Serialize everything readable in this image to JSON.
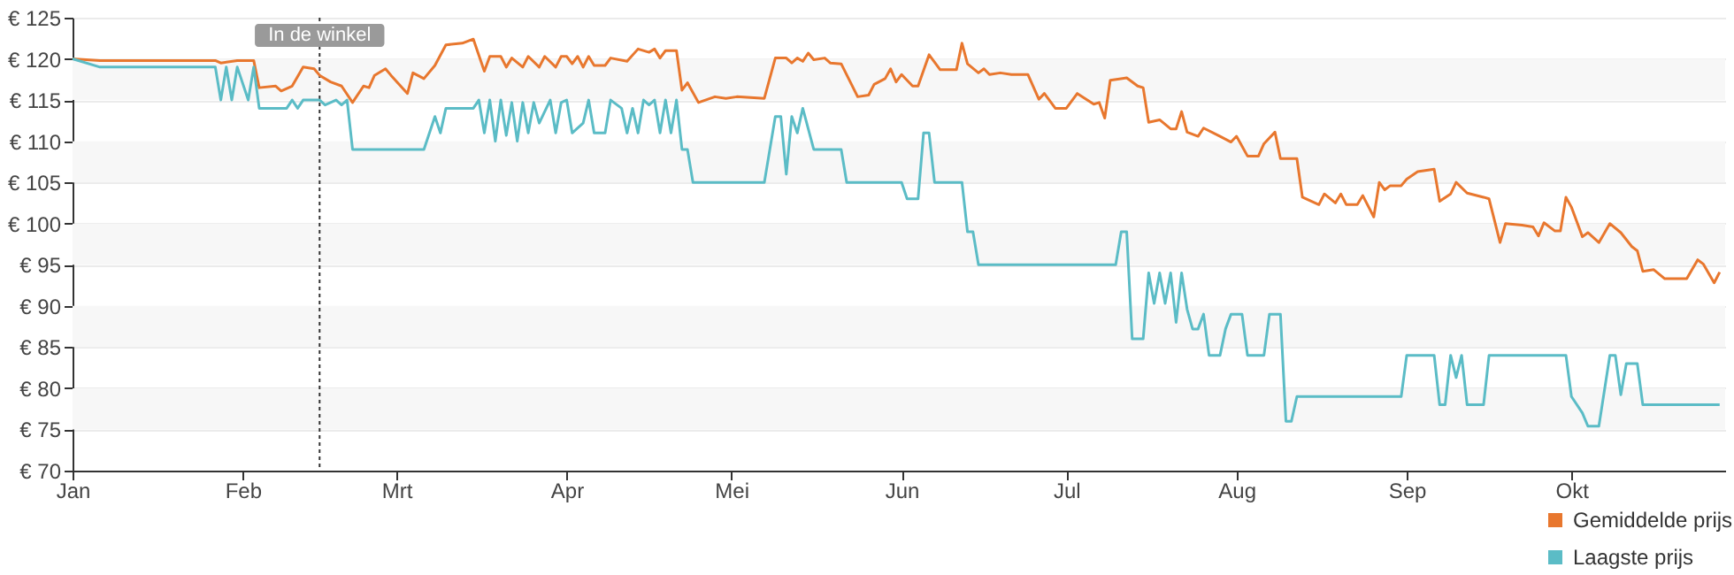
{
  "chart_data": {
    "type": "line",
    "legend": "bottom right",
    "grid": "y",
    "xlim": [
      "--01-01",
      "--10-29"
    ],
    "xticks": [
      {
        "value": "--01-01",
        "label": "Jan"
      },
      {
        "value": "--02-01",
        "label": "Feb"
      },
      {
        "value": "--03-01",
        "label": "Mrt"
      },
      {
        "value": "--04-01",
        "label": "Apr"
      },
      {
        "value": "--05-01",
        "label": "Mei"
      },
      {
        "value": "--06-01",
        "label": "Jun"
      },
      {
        "value": "--07-01",
        "label": "Jul"
      },
      {
        "value": "--08-01",
        "label": "Aug"
      },
      {
        "value": "--09-01",
        "label": "Sep"
      },
      {
        "value": "--10-01",
        "label": "Okt"
      }
    ],
    "ylim": [
      70,
      125
    ],
    "yticks": [
      {
        "value": 70,
        "label": "€ 70"
      },
      {
        "value": 75,
        "label": "€ 75"
      },
      {
        "value": 80,
        "label": "€ 80"
      },
      {
        "value": 85,
        "label": "€ 85"
      },
      {
        "value": 90,
        "label": "€ 90"
      },
      {
        "value": 95,
        "label": "€ 95"
      },
      {
        "value": 100,
        "label": "€ 100"
      },
      {
        "value": 105,
        "label": "€ 105"
      },
      {
        "value": 110,
        "label": "€ 110"
      },
      {
        "value": 115,
        "label": "€ 115"
      },
      {
        "value": 120,
        "label": "€ 120"
      },
      {
        "value": 125,
        "label": "€ 125"
      }
    ],
    "ref_lines": [
      {
        "axis": "x",
        "value": "--02-15",
        "label": "In de winkel",
        "line_style": "dotted",
        "color": "#333333"
      }
    ],
    "series": [
      {
        "name": "Gemiddelde prijs",
        "color": "#e8772e",
        "x": [
          "--01-01",
          "--01-06",
          "--01-20",
          "--01-27",
          "--01-28",
          "--01-31",
          "--02-03",
          "--02-04",
          "--02-07",
          "--02-08",
          "--02-10",
          "--02-12",
          "--02-14",
          "--02-15",
          "--02-17",
          "--02-19",
          "--02-21",
          "--02-23",
          "--02-24",
          "--02-25",
          "--02-27",
          "--02-28",
          "--03-03",
          "--03-04",
          "--03-06",
          "--03-08",
          "--03-10",
          "--03-13",
          "--03-15",
          "--03-17",
          "--03-18",
          "--03-20",
          "--03-21",
          "--03-22",
          "--03-24",
          "--03-25",
          "--03-27",
          "--03-28",
          "--03-30",
          "--03-31",
          "--04-01",
          "--04-02",
          "--04-03",
          "--04-04",
          "--04-05",
          "--04-06",
          "--04-08",
          "--04-09",
          "--04-12",
          "--04-14",
          "--04-16",
          "--04-17",
          "--04-18",
          "--04-19",
          "--04-21",
          "--04-22",
          "--04-23",
          "--04-25",
          "--04-28",
          "--04-30",
          "--05-02",
          "--05-07",
          "--05-09",
          "--05-11",
          "--05-12",
          "--05-13",
          "--05-14",
          "--05-15",
          "--05-16",
          "--05-18",
          "--05-19",
          "--05-21",
          "--05-24",
          "--05-26",
          "--05-27",
          "--05-29",
          "--05-30",
          "--05-31",
          "--06-01",
          "--06-03",
          "--06-04",
          "--06-06",
          "--06-08",
          "--06-11",
          "--06-12",
          "--06-13",
          "--06-15",
          "--06-16",
          "--06-17",
          "--06-19",
          "--06-21",
          "--06-24",
          "--06-26",
          "--06-27",
          "--06-29",
          "--07-01",
          "--07-03",
          "--07-06",
          "--07-07",
          "--07-08",
          "--07-09",
          "--07-12",
          "--07-14",
          "--07-15",
          "--07-16",
          "--07-18",
          "--07-20",
          "--07-21",
          "--07-22",
          "--07-23",
          "--07-25",
          "--07-26",
          "--07-29",
          "--07-31",
          "--08-01",
          "--08-03",
          "--08-05",
          "--08-06",
          "--08-08",
          "--08-09",
          "--08-12",
          "--08-13",
          "--08-16",
          "--08-17",
          "--08-19",
          "--08-20",
          "--08-21",
          "--08-23",
          "--08-24",
          "--08-26",
          "--08-27",
          "--08-28",
          "--08-29",
          "--08-31",
          "--09-01",
          "--09-03",
          "--09-06",
          "--09-07",
          "--09-09",
          "--09-10",
          "--09-12",
          "--09-15",
          "--09-16",
          "--09-18",
          "--09-19",
          "--09-22",
          "--09-24",
          "--09-25",
          "--09-26",
          "--09-28",
          "--09-29",
          "--09-30",
          "--10-01",
          "--10-03",
          "--10-04",
          "--10-06",
          "--10-08",
          "--10-10",
          "--10-12",
          "--10-13",
          "--10-14",
          "--10-16",
          "--10-18",
          "--10-22",
          "--10-24",
          "--10-25",
          "--10-27",
          "--10-28"
        ],
        "values": [
          120,
          119.8,
          119.8,
          119.8,
          119.5,
          119.8,
          119.8,
          116.5,
          116.7,
          116.1,
          116.7,
          119,
          118.8,
          118,
          117.2,
          116.7,
          114.7,
          116.7,
          116.5,
          118,
          118.8,
          118,
          115.8,
          118.3,
          117.6,
          119.2,
          121.7,
          121.9,
          122.4,
          118.5,
          120.3,
          120.3,
          119,
          120.1,
          119,
          120.3,
          119,
          120.3,
          119,
          120.3,
          120.3,
          119.4,
          120.3,
          119,
          120.3,
          119.2,
          119.2,
          120.1,
          119.7,
          121.2,
          120.8,
          121.2,
          120.1,
          121,
          121,
          116.2,
          117.1,
          114.7,
          115.4,
          115.2,
          115.4,
          115.2,
          120.1,
          120.1,
          119.5,
          120.1,
          119.7,
          120.7,
          119.9,
          120.1,
          119.5,
          119.4,
          115.4,
          115.6,
          116.9,
          117.6,
          118.8,
          117.2,
          118.1,
          116.7,
          116.7,
          120.5,
          118.7,
          118.7,
          121.9,
          119.4,
          118.3,
          118.8,
          118.1,
          118.3,
          118.1,
          118.1,
          115.1,
          115.8,
          114,
          114,
          115.8,
          114.5,
          114.7,
          112.8,
          117.4,
          117.7,
          116.7,
          116.5,
          112.3,
          112.6,
          111.5,
          111.5,
          113.6,
          111.1,
          110.6,
          111.6,
          110.6,
          109.9,
          110.6,
          108.2,
          108.2,
          109.7,
          111.1,
          107.9,
          107.9,
          103.2,
          102.3,
          103.6,
          102.5,
          103.6,
          102.3,
          102.3,
          103.4,
          100.8,
          105,
          104.1,
          104.6,
          104.6,
          105.4,
          106.3,
          106.6,
          102.7,
          103.6,
          105,
          103.7,
          103.2,
          103,
          97.7,
          100,
          99.8,
          99.6,
          98.5,
          100.1,
          99.1,
          99.1,
          103.2,
          102,
          98.4,
          98.9,
          97.7,
          100,
          98.9,
          97.2,
          96.7,
          94.2,
          94.4,
          93.3,
          93.3,
          95.6,
          95.1,
          92.8,
          94.1
        ]
      },
      {
        "name": "Laagste prijs",
        "color": "#5bbcc6",
        "x": [
          "--01-01",
          "--01-06",
          "--01-27",
          "--01-28",
          "--01-29",
          "--01-30",
          "--01-31",
          "--02-02",
          "--02-03",
          "--02-04",
          "--02-09",
          "--02-10",
          "--02-11",
          "--02-12",
          "--02-15",
          "--02-16",
          "--02-18",
          "--02-19",
          "--02-20",
          "--02-21",
          "--03-06",
          "--03-08",
          "--03-09",
          "--03-10",
          "--03-15",
          "--03-16",
          "--03-17",
          "--03-18",
          "--03-19",
          "--03-20",
          "--03-21",
          "--03-22",
          "--03-23",
          "--03-24",
          "--03-25",
          "--03-26",
          "--03-27",
          "--03-29",
          "--03-30",
          "--03-31",
          "--04-01",
          "--04-02",
          "--04-04",
          "--04-05",
          "--04-06",
          "--04-08",
          "--04-09",
          "--04-11",
          "--04-12",
          "--04-13",
          "--04-14",
          "--04-15",
          "--04-16",
          "--04-17",
          "--04-18",
          "--04-19",
          "--04-20",
          "--04-21",
          "--04-22",
          "--04-23",
          "--04-24",
          "--05-07",
          "--05-09",
          "--05-10",
          "--05-11",
          "--05-12",
          "--05-13",
          "--05-14",
          "--05-16",
          "--05-21",
          "--05-22",
          "--06-01",
          "--06-02",
          "--06-04",
          "--06-05",
          "--06-06",
          "--06-07",
          "--06-12",
          "--06-13",
          "--06-14",
          "--06-15",
          "--07-10",
          "--07-11",
          "--07-12",
          "--07-13",
          "--07-15",
          "--07-16",
          "--07-17",
          "--07-18",
          "--07-19",
          "--07-20",
          "--07-21",
          "--07-22",
          "--07-23",
          "--07-24",
          "--07-25",
          "--07-26",
          "--07-27",
          "--07-29",
          "--07-30",
          "--07-31",
          "--08-02",
          "--08-03",
          "--08-06",
          "--08-07",
          "--08-09",
          "--08-10",
          "--08-11",
          "--08-12",
          "--08-31",
          "--09-01",
          "--09-06",
          "--09-07",
          "--09-08",
          "--09-09",
          "--09-10",
          "--09-11",
          "--09-12",
          "--09-15",
          "--09-16",
          "--09-30",
          "--10-01",
          "--10-03",
          "--10-04",
          "--10-06",
          "--10-08",
          "--10-09",
          "--10-10",
          "--10-11",
          "--10-13",
          "--10-14",
          "--10-28"
        ],
        "values": [
          120,
          119,
          119,
          115,
          119,
          115,
          119,
          115,
          119,
          114,
          114,
          115,
          114,
          115,
          115,
          114.4,
          115,
          114.4,
          115,
          109,
          109,
          113,
          111,
          114,
          114,
          115,
          111,
          115,
          110,
          115,
          110.7,
          114.7,
          110,
          114.7,
          111,
          114.7,
          112.2,
          115,
          111,
          114.7,
          115,
          111,
          112.2,
          115,
          111,
          111,
          115,
          114,
          111,
          114,
          111,
          115,
          114.4,
          115,
          111,
          115,
          111,
          115,
          109,
          109,
          105,
          105,
          113,
          113,
          106,
          113,
          111,
          114,
          109,
          109,
          105,
          105,
          103,
          103,
          111,
          111,
          105,
          105,
          99,
          99,
          95,
          95,
          99,
          99,
          86,
          86,
          94,
          90.3,
          94,
          90.3,
          94,
          88,
          94,
          89.6,
          87.2,
          87.2,
          89,
          84,
          84,
          87.2,
          89,
          89,
          84,
          84,
          89,
          89,
          76,
          76,
          79,
          79,
          84,
          84,
          78,
          78,
          84,
          81.3,
          84,
          78,
          78,
          84,
          84,
          79,
          77,
          75.4,
          75.4,
          84,
          84,
          79.2,
          83,
          83,
          78,
          78
        ]
      }
    ]
  }
}
